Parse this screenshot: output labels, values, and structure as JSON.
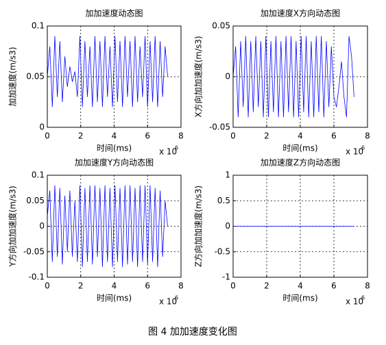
{
  "caption": "图 4  加加速度变化图",
  "chart_data": [
    {
      "type": "line",
      "title": "加加速度动态图",
      "xlabel": "时间(ms)",
      "ylabel": "加加速度(m/s3)",
      "x_offset_text": "x 10",
      "x_offset_exp": "6",
      "color": "#0000ff",
      "grid": true,
      "xlim": [
        0,
        8
      ],
      "xticks": [
        0,
        2,
        4,
        6,
        8
      ],
      "ylim": [
        0,
        0.1
      ],
      "yticks": [
        0,
        0.05,
        0.1
      ],
      "x": [
        0,
        0.15,
        0.3,
        0.45,
        0.6,
        0.75,
        0.9,
        1.05,
        1.2,
        1.35,
        1.5,
        1.65,
        1.8,
        1.95,
        2.1,
        2.25,
        2.4,
        2.55,
        2.7,
        2.85,
        3.0,
        3.15,
        3.3,
        3.45,
        3.6,
        3.75,
        3.9,
        4.05,
        4.2,
        4.35,
        4.5,
        4.65,
        4.8,
        4.95,
        5.1,
        5.25,
        5.4,
        5.55,
        5.7,
        5.85,
        6.0,
        6.15,
        6.3,
        6.45,
        6.6,
        6.75,
        6.9,
        7.05,
        7.2
      ],
      "values": [
        0.05,
        0.08,
        0.02,
        0.09,
        0.03,
        0.085,
        0.025,
        0.07,
        0.04,
        0.06,
        0.045,
        0.055,
        0.03,
        0.09,
        0.02,
        0.085,
        0.03,
        0.08,
        0.02,
        0.09,
        0.025,
        0.085,
        0.02,
        0.09,
        0.03,
        0.08,
        0.02,
        0.09,
        0.025,
        0.085,
        0.02,
        0.09,
        0.03,
        0.085,
        0.02,
        0.09,
        0.025,
        0.08,
        0.03,
        0.09,
        0.02,
        0.085,
        0.025,
        0.09,
        0.02,
        0.085,
        0.03,
        0.08,
        0.05
      ]
    },
    {
      "type": "line",
      "title": "加加速度X方向动态图",
      "xlabel": "时间(ms)",
      "ylabel": "X方向加加速度(m/s3)",
      "x_offset_text": "x 10",
      "x_offset_exp": "6",
      "color": "#0000ff",
      "grid": true,
      "xlim": [
        0,
        8
      ],
      "xticks": [
        0,
        2,
        4,
        6,
        8
      ],
      "ylim": [
        -0.05,
        0.05
      ],
      "yticks": [
        -0.05,
        0,
        0.05
      ],
      "x": [
        0,
        0.15,
        0.3,
        0.45,
        0.6,
        0.75,
        0.9,
        1.05,
        1.2,
        1.35,
        1.5,
        1.65,
        1.8,
        1.95,
        2.1,
        2.25,
        2.4,
        2.55,
        2.7,
        2.85,
        3.0,
        3.15,
        3.3,
        3.45,
        3.6,
        3.75,
        3.9,
        4.05,
        4.2,
        4.35,
        4.5,
        4.65,
        4.8,
        4.95,
        5.1,
        5.25,
        5.4,
        5.55,
        5.7,
        5.85,
        6.0,
        6.15,
        6.3,
        6.45,
        6.6,
        6.75,
        6.9,
        7.05,
        7.2
      ],
      "values": [
        0,
        0.03,
        -0.04,
        0.035,
        -0.03,
        0.04,
        -0.04,
        0.035,
        -0.035,
        0.04,
        -0.03,
        0.035,
        -0.04,
        0.04,
        -0.04,
        0.035,
        -0.035,
        0.04,
        -0.04,
        0.035,
        -0.04,
        0.04,
        -0.035,
        0.04,
        -0.04,
        0.035,
        -0.04,
        0.04,
        -0.035,
        0.04,
        -0.04,
        0.035,
        -0.04,
        0.04,
        -0.035,
        0.04,
        -0.04,
        0.035,
        -0.03,
        0.03,
        -0.02,
        -0.03,
        -0.01,
        0.015,
        -0.02,
        -0.04,
        0.04,
        0.02,
        -0.02
      ]
    },
    {
      "type": "line",
      "title": "加加速度Y方向动态图",
      "xlabel": "时间(ms)",
      "ylabel": "Y方向加加速度(m/s3)",
      "x_offset_text": "x 10",
      "x_offset_exp": "6",
      "color": "#0000ff",
      "grid": true,
      "xlim": [
        0,
        8
      ],
      "xticks": [
        0,
        2,
        4,
        6,
        8
      ],
      "ylim": [
        -0.1,
        0.1
      ],
      "yticks": [
        -0.1,
        -0.05,
        0,
        0.05,
        0.1
      ],
      "x": [
        0,
        0.15,
        0.3,
        0.45,
        0.6,
        0.75,
        0.9,
        1.05,
        1.2,
        1.35,
        1.5,
        1.65,
        1.8,
        1.95,
        2.1,
        2.25,
        2.4,
        2.55,
        2.7,
        2.85,
        3.0,
        3.15,
        3.3,
        3.45,
        3.6,
        3.75,
        3.9,
        4.05,
        4.2,
        4.35,
        4.5,
        4.65,
        4.8,
        4.95,
        5.1,
        5.25,
        5.4,
        5.55,
        5.7,
        5.85,
        6.0,
        6.15,
        6.3,
        6.45,
        6.6,
        6.75,
        6.9,
        7.05,
        7.2
      ],
      "values": [
        0.02,
        0.07,
        -0.07,
        0.08,
        -0.06,
        0.075,
        -0.075,
        0.06,
        -0.05,
        0.07,
        -0.06,
        0.05,
        -0.07,
        0.08,
        -0.08,
        0.075,
        -0.07,
        0.08,
        -0.075,
        0.08,
        -0.06,
        0.075,
        -0.08,
        0.08,
        -0.07,
        0.075,
        -0.08,
        0.08,
        -0.07,
        0.075,
        -0.08,
        0.08,
        -0.075,
        0.08,
        -0.07,
        0.075,
        -0.08,
        0.08,
        -0.07,
        0.08,
        -0.075,
        0.08,
        -0.07,
        0.075,
        -0.08,
        0.07,
        -0.06,
        0.05,
        0
      ]
    },
    {
      "type": "line",
      "title": "加加速度Z方向动态图",
      "xlabel": "时间(ms)",
      "ylabel": "Z方向加加速度(m/s3)",
      "x_offset_text": "x 10",
      "x_offset_exp": "6",
      "color": "#0000ff",
      "grid": true,
      "xlim": [
        0,
        8
      ],
      "xticks": [
        0,
        2,
        4,
        6,
        8
      ],
      "ylim": [
        -1,
        1
      ],
      "yticks": [
        -1,
        -0.5,
        0,
        0.5,
        1
      ],
      "x": [
        0,
        7.2
      ],
      "values": [
        0,
        0
      ]
    }
  ]
}
